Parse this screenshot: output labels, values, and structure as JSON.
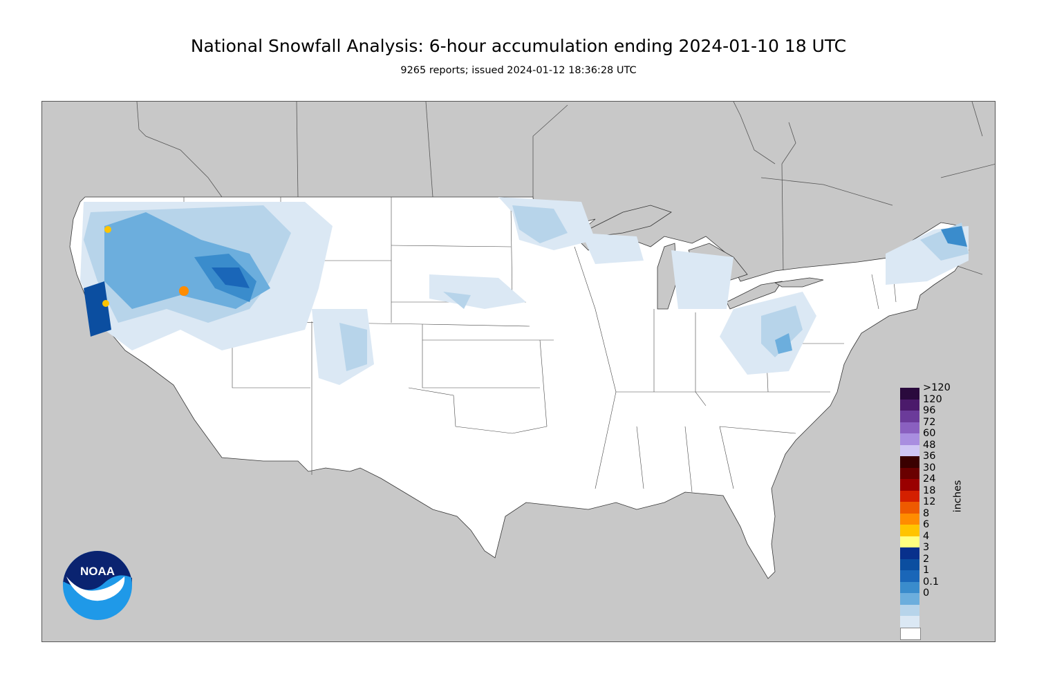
{
  "title": "National Snowfall Analysis: 6-hour accumulation ending 2024-01-10 18 UTC",
  "subtitle": "9265 reports; issued 2024-01-12 18:36:28 UTC",
  "map": {
    "region": "contiguous-united-states",
    "background_color": "#c8c8c8",
    "land_color": "#ffffff"
  },
  "legend": {
    "units": "inches",
    "bins": [
      {
        "label": ">120",
        "color": "#2a0a3d"
      },
      {
        "label": "120",
        "color": "#4b1a6b"
      },
      {
        "label": "96",
        "color": "#6b3b9a"
      },
      {
        "label": "72",
        "color": "#8a60c0"
      },
      {
        "label": "60",
        "color": "#a98ee0"
      },
      {
        "label": "48",
        "color": "#cfc6f4"
      },
      {
        "label": "36",
        "color": "#3a0000"
      },
      {
        "label": "30",
        "color": "#6a0000"
      },
      {
        "label": "24",
        "color": "#9a0000"
      },
      {
        "label": "18",
        "color": "#d42000"
      },
      {
        "label": "12",
        "color": "#ee5a00"
      },
      {
        "label": "8",
        "color": "#ff8c00"
      },
      {
        "label": "6",
        "color": "#ffc400"
      },
      {
        "label": "4",
        "color": "#ffff80"
      },
      {
        "label": "3",
        "color": "#08308c"
      },
      {
        "label": "2",
        "color": "#0b4ea0"
      },
      {
        "label": "1",
        "color": "#1a66b8"
      },
      {
        "label": "0.1",
        "color": "#3a8ccc"
      },
      {
        "label": "0",
        "color": "#6caedd"
      }
    ],
    "extra_colors": [
      "#b7d4ea",
      "#dbe8f4",
      "#ffffff"
    ]
  },
  "logo": {
    "text": "NOAA",
    "icon": "noaa-logo-icon"
  }
}
